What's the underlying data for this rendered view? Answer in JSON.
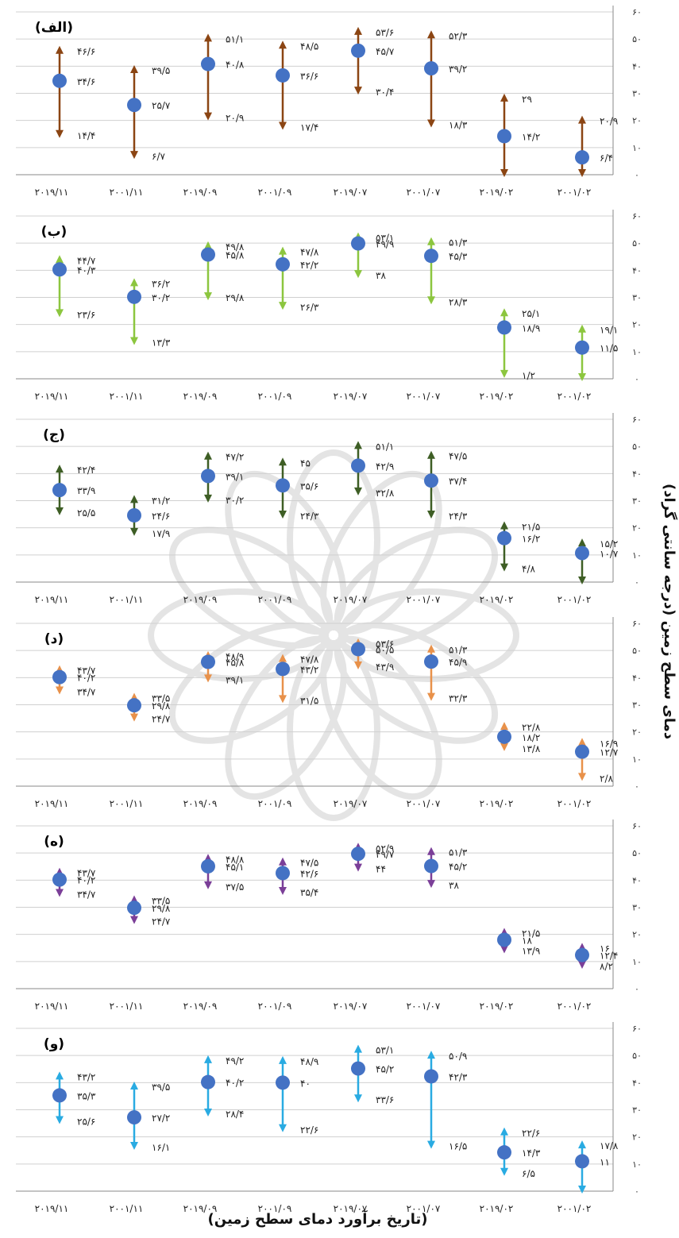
{
  "y_axis_label": "دمای سطح زمین (درجه سانتی گراد)",
  "x_axis_label": "(تاریخ برآورد دمای سطح زمین)",
  "chart_data": [
    {
      "type": "scatter",
      "panel_label": "(الف)",
      "color": "#8B4513",
      "ylim": [
        0,
        60
      ],
      "y_ticks": [
        "۰",
        "۱۰",
        "۲۰",
        "۳۰",
        "۴۰",
        "۵۰",
        "۶۰"
      ],
      "categories": [
        "۲۰۱۹/۱۱",
        "۲۰۰۱/۱۱",
        "۲۰۱۹/۰۹",
        "۲۰۰۱/۰۹",
        "۲۰۱۹/۰۷",
        "۲۰۰۱/۰۷",
        "۲۰۱۹/۰۲",
        "۲۰۰۱/۰۲"
      ],
      "points": [
        {
          "mean": 34.6,
          "max": 46.6,
          "min": 14.4,
          "mean_label": "۳۴/۶",
          "max_label": "۴۶/۶",
          "min_label": "۱۴/۴"
        },
        {
          "mean": 25.7,
          "max": 39.5,
          "min": 6.7,
          "mean_label": "۲۵/۷",
          "max_label": "۳۹/۵",
          "min_label": "۶/۷"
        },
        {
          "mean": 40.8,
          "max": 51.1,
          "min": 20.9,
          "mean_label": "۴۰/۸",
          "max_label": "۵۱/۱",
          "min_label": "۲۰/۹"
        },
        {
          "mean": 36.6,
          "max": 48.5,
          "min": 17.4,
          "mean_label": "۳۶/۶",
          "max_label": "۴۸/۵",
          "min_label": "۱۷/۴"
        },
        {
          "mean": 45.7,
          "max": 53.6,
          "min": 30.4,
          "mean_label": "۴۵/۷",
          "max_label": "۵۳/۶",
          "min_label": "۳۰/۴"
        },
        {
          "mean": 39.2,
          "max": 52.3,
          "min": 18.3,
          "mean_label": "۳۹/۲",
          "max_label": "۵۲/۳",
          "min_label": "۱۸/۳"
        },
        {
          "mean": 14.2,
          "max": 29,
          "min": 0,
          "mean_label": "۱۴/۲",
          "max_label": "۲۹",
          "min_label": ""
        },
        {
          "mean": 6.4,
          "max": 20.9,
          "min": 0,
          "mean_label": "۶/۴",
          "max_label": "۲۰/۹",
          "min_label": ""
        }
      ]
    },
    {
      "type": "scatter",
      "panel_label": "(ب)",
      "color": "#8CC63F",
      "ylim": [
        0,
        60
      ],
      "y_ticks": [
        "۰",
        "۱۰",
        "۲۰",
        "۳۰",
        "۴۰",
        "۵۰",
        "۶۰"
      ],
      "categories": [
        "۲۰۱۹/۱۱",
        "۲۰۰۱/۱۱",
        "۲۰۱۹/۰۹",
        "۲۰۰۱/۰۹",
        "۲۰۱۹/۰۷",
        "۲۰۰۱/۰۷",
        "۲۰۱۹/۰۲",
        "۲۰۰۱/۰۲"
      ],
      "points": [
        {
          "mean": 40.3,
          "max": 44.7,
          "min": 23.6,
          "mean_label": "۴۰/۳",
          "max_label": "۴۴/۷",
          "min_label": "۲۳/۶"
        },
        {
          "mean": 30.2,
          "max": 36.2,
          "min": 13.3,
          "mean_label": "۳۰/۲",
          "max_label": "۳۶/۲",
          "min_label": "۱۳/۳"
        },
        {
          "mean": 45.8,
          "max": 49.8,
          "min": 29.8,
          "mean_label": "۴۵/۸",
          "max_label": "۴۹/۸",
          "min_label": "۲۹/۸"
        },
        {
          "mean": 42.2,
          "max": 47.8,
          "min": 26.3,
          "mean_label": "۴۲/۲",
          "max_label": "۴۷/۸",
          "min_label": "۲۶/۳"
        },
        {
          "mean": 49.9,
          "max": 53.1,
          "min": 38,
          "mean_label": "۴۹/۹",
          "max_label": "۵۳/۱",
          "min_label": "۳۸"
        },
        {
          "mean": 45.3,
          "max": 51.3,
          "min": 28.3,
          "mean_label": "۴۵/۳",
          "max_label": "۵۱/۳",
          "min_label": "۲۸/۳"
        },
        {
          "mean": 18.9,
          "max": 25.1,
          "min": 1.2,
          "mean_label": "۱۸/۹",
          "max_label": "۲۵/۱",
          "min_label": "۱/۲"
        },
        {
          "mean": 11.5,
          "max": 19.1,
          "min": 0,
          "mean_label": "۱۱/۵",
          "max_label": "۱۹/۱",
          "min_label": ""
        }
      ]
    },
    {
      "type": "scatter",
      "panel_label": "(ج)",
      "color": "#3E5E25",
      "ylim": [
        0,
        60
      ],
      "y_ticks": [
        "۰",
        "۱۰",
        "۲۰",
        "۳۰",
        "۴۰",
        "۵۰",
        "۶۰"
      ],
      "categories": [
        "۲۰۱۹/۱۱",
        "۲۰۰۱/۱۱",
        "۲۰۱۹/۰۹",
        "۲۰۰۱/۰۹",
        "۲۰۱۹/۰۷",
        "۲۰۰۱/۰۷",
        "۲۰۱۹/۰۲",
        "۲۰۰۱/۰۲"
      ],
      "points": [
        {
          "mean": 33.9,
          "max": 42.4,
          "min": 25.5,
          "mean_label": "۳۳/۹",
          "max_label": "۴۲/۴",
          "min_label": "۲۵/۵"
        },
        {
          "mean": 24.6,
          "max": 31.2,
          "min": 17.9,
          "mean_label": "۲۴/۶",
          "max_label": "۳۱/۲",
          "min_label": "۱۷/۹"
        },
        {
          "mean": 39.1,
          "max": 47.2,
          "min": 30.2,
          "mean_label": "۳۹/۱",
          "max_label": "۴۷/۲",
          "min_label": "۳۰/۲"
        },
        {
          "mean": 35.6,
          "max": 45,
          "min": 24.3,
          "mean_label": "۳۵/۶",
          "max_label": "۴۵",
          "min_label": "۲۴/۳"
        },
        {
          "mean": 42.9,
          "max": 51.1,
          "min": 32.8,
          "mean_label": "۴۲/۹",
          "max_label": "۵۱/۱",
          "min_label": "۳۲/۸"
        },
        {
          "mean": 37.4,
          "max": 47.5,
          "min": 24.3,
          "mean_label": "۳۷/۴",
          "max_label": "۴۷/۵",
          "min_label": "۲۴/۳"
        },
        {
          "mean": 16.2,
          "max": 21.5,
          "min": 4.8,
          "mean_label": "۱۶/۲",
          "max_label": "۲۱/۵",
          "min_label": "۴/۸"
        },
        {
          "mean": 10.7,
          "max": 15.2,
          "min": 0,
          "mean_label": "۱۰/۷",
          "max_label": "۱۵/۲",
          "min_label": ""
        }
      ]
    },
    {
      "type": "scatter",
      "panel_label": "(د)",
      "color": "#E8914A",
      "ylim": [
        0,
        60
      ],
      "y_ticks": [
        "۰",
        "۱۰",
        "۲۰",
        "۳۰",
        "۴۰",
        "۵۰",
        "۶۰"
      ],
      "categories": [
        "۲۰۱۹/۱۱",
        "۲۰۰۱/۱۱",
        "۲۰۱۹/۰۹",
        "۲۰۰۱/۰۹",
        "۲۰۱۹/۰۷",
        "۲۰۰۱/۰۷",
        "۲۰۱۹/۰۲",
        "۲۰۰۱/۰۲"
      ],
      "points": [
        {
          "mean": 40.2,
          "max": 43.7,
          "min": 34.7,
          "mean_label": "۴۰/۲",
          "max_label": "۴۳/۷",
          "min_label": "۳۴/۷"
        },
        {
          "mean": 29.8,
          "max": 33.5,
          "min": 24.7,
          "mean_label": "۲۹/۸",
          "max_label": "۳۳/۵",
          "min_label": "۲۴/۷"
        },
        {
          "mean": 45.8,
          "max": 48.9,
          "min": 39.1,
          "mean_label": "۴۵/۸",
          "max_label": "۴۸/۹",
          "min_label": "۳۹/۱"
        },
        {
          "mean": 43.2,
          "max": 47.8,
          "min": 31.5,
          "mean_label": "۴۳/۲",
          "max_label": "۴۷/۸",
          "min_label": "۳۱/۵"
        },
        {
          "mean": 50.5,
          "max": 53.6,
          "min": 43.9,
          "mean_label": "۵۰/۵",
          "max_label": "۵۳/۶",
          "min_label": "۴۳/۹"
        },
        {
          "mean": 45.9,
          "max": 51.3,
          "min": 32.3,
          "mean_label": "۴۵/۹",
          "max_label": "۵۱/۳",
          "min_label": "۳۲/۳"
        },
        {
          "mean": 18.2,
          "max": 22.8,
          "min": 13.8,
          "mean_label": "۱۸/۲",
          "max_label": "۲۲/۸",
          "min_label": "۱۳/۸"
        },
        {
          "mean": 12.7,
          "max": 16.9,
          "min": 2.8,
          "mean_label": "۱۲/۷",
          "max_label": "۱۶/۹",
          "min_label": "۲/۸"
        }
      ]
    },
    {
      "type": "scatter",
      "panel_label": "(ه)",
      "color": "#7B3F98",
      "ylim": [
        0,
        60
      ],
      "y_ticks": [
        "۰",
        "۱۰",
        "۲۰",
        "۳۰",
        "۴۰",
        "۵۰",
        "۶۰"
      ],
      "categories": [
        "۲۰۱۹/۱۱",
        "۲۰۰۱/۱۱",
        "۲۰۱۹/۰۹",
        "۲۰۰۱/۰۹",
        "۲۰۱۹/۰۷",
        "۲۰۰۱/۰۷",
        "۲۰۱۹/۰۲",
        "۲۰۰۱/۰۲"
      ],
      "points": [
        {
          "mean": 40.2,
          "max": 43.7,
          "min": 34.7,
          "mean_label": "۴۰/۲",
          "max_label": "۴۳/۷",
          "min_label": "۳۴/۷"
        },
        {
          "mean": 29.8,
          "max": 33.5,
          "min": 24.7,
          "mean_label": "۲۹/۸",
          "max_label": "۳۳/۵",
          "min_label": "۲۴/۷"
        },
        {
          "mean": 45.1,
          "max": 48.8,
          "min": 37.5,
          "mean_label": "۴۵/۱",
          "max_label": "۴۸/۸",
          "min_label": "۳۷/۵"
        },
        {
          "mean": 42.6,
          "max": 47.5,
          "min": 35.4,
          "mean_label": "۴۲/۶",
          "max_label": "۴۷/۵",
          "min_label": "۳۵/۴"
        },
        {
          "mean": 49.7,
          "max": 52.9,
          "min": 44,
          "mean_label": "۴۹/۷",
          "max_label": "۵۲/۹",
          "min_label": "۴۴"
        },
        {
          "mean": 45.2,
          "max": 51.3,
          "min": 38,
          "mean_label": "۴۵/۲",
          "max_label": "۵۱/۳",
          "min_label": "۳۸"
        },
        {
          "mean": 18,
          "max": 21.5,
          "min": 13.9,
          "mean_label": "۱۸",
          "max_label": "۲۱/۵",
          "min_label": "۱۳/۹"
        },
        {
          "mean": 12.4,
          "max": 16,
          "min": 8.2,
          "mean_label": "۱۲/۴",
          "max_label": "۱۶",
          "min_label": "۸/۲"
        }
      ]
    },
    {
      "type": "scatter",
      "panel_label": "(و)",
      "color": "#29ABE2",
      "ylim": [
        0,
        60
      ],
      "y_ticks": [
        "۰",
        "۱۰",
        "۲۰",
        "۳۰",
        "۴۰",
        "۵۰",
        "۶۰"
      ],
      "categories": [
        "۲۰۱۹/۱۱",
        "۲۰۰۱/۱۱",
        "۲۰۱۹/۰۹",
        "۲۰۰۱/۰۹",
        "۲۰۱۹/۰۷",
        "۲۰۰۱/۰۷",
        "۲۰۱۹/۰۲",
        "۲۰۰۱/۰۲"
      ],
      "points": [
        {
          "mean": 35.3,
          "max": 43.2,
          "min": 25.6,
          "mean_label": "۳۵/۳",
          "max_label": "۴۳/۲",
          "min_label": "۲۵/۶"
        },
        {
          "mean": 27.2,
          "max": 39.5,
          "min": 16.1,
          "mean_label": "۲۷/۲",
          "max_label": "۳۹/۵",
          "min_label": "۱۶/۱"
        },
        {
          "mean": 40.2,
          "max": 49.2,
          "min": 28.4,
          "mean_label": "۴۰/۲",
          "max_label": "۴۹/۲",
          "min_label": "۲۸/۴"
        },
        {
          "mean": 40,
          "max": 48.9,
          "min": 22.6,
          "mean_label": "۴۰",
          "max_label": "۴۸/۹",
          "min_label": "۲۲/۶"
        },
        {
          "mean": 45.2,
          "max": 53.1,
          "min": 33.6,
          "mean_label": "۴۵/۲",
          "max_label": "۵۳/۱",
          "min_label": "۳۳/۶"
        },
        {
          "mean": 42.3,
          "max": 50.9,
          "min": 16.5,
          "mean_label": "۴۲/۳",
          "max_label": "۵۰/۹",
          "min_label": "۱۶/۵"
        },
        {
          "mean": 14.3,
          "max": 22.6,
          "min": 6.5,
          "mean_label": "۱۴/۳",
          "max_label": "۲۲/۶",
          "min_label": "۶/۵"
        },
        {
          "mean": 11,
          "max": 17.8,
          "min": 0,
          "mean_label": "۱۱",
          "max_label": "۱۷/۸",
          "min_label": ""
        }
      ]
    }
  ]
}
